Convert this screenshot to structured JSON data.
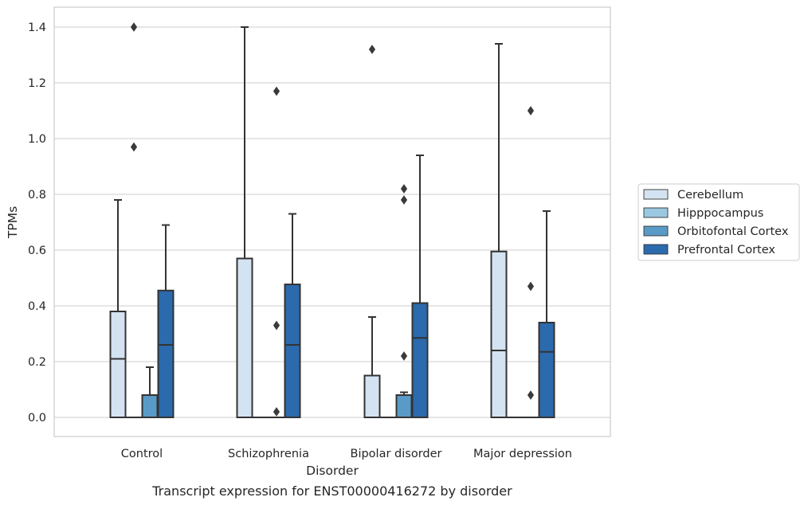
{
  "caption": "Transcript expression for ENST00000416272 by disorder",
  "chart_data": {
    "type": "boxplot",
    "xlabel": "Disorder",
    "ylabel": "TPMs",
    "ylim": [
      -0.07,
      1.47
    ],
    "yticks": [
      0.0,
      0.2,
      0.4,
      0.6,
      0.8,
      1.0,
      1.2,
      1.4
    ],
    "ytick_labels": [
      "0.0",
      "0.2",
      "0.4",
      "0.6",
      "0.8",
      "1.0",
      "1.2",
      "1.4"
    ],
    "grid": "horizontal",
    "legend_position": "right",
    "categories": [
      "Control",
      "Schizophrenia",
      "Bipolar disorder",
      "Major depression"
    ],
    "series": [
      {
        "name": "Cerebellum",
        "color": "#d4e3f1",
        "boxes": [
          {
            "q1": 0.0,
            "median": 0.21,
            "q3": 0.38,
            "whisker_low": 0.0,
            "whisker_high": 0.78,
            "outliers": []
          },
          {
            "q1": 0.0,
            "median": 0.0,
            "q3": 0.57,
            "whisker_low": 0.0,
            "whisker_high": 1.4,
            "outliers": []
          },
          {
            "q1": 0.0,
            "median": 0.0,
            "q3": 0.15,
            "whisker_low": 0.0,
            "whisker_high": 0.36,
            "outliers": [
              1.32
            ]
          },
          {
            "q1": 0.0,
            "median": 0.24,
            "q3": 0.595,
            "whisker_low": 0.0,
            "whisker_high": 1.34,
            "outliers": []
          }
        ]
      },
      {
        "name": "Hipppocampus",
        "color": "#9ac8e0",
        "boxes": [
          {
            "q1": 0.0,
            "median": 0.0,
            "q3": 0.0,
            "whisker_low": 0.0,
            "whisker_high": 0.0,
            "outliers": [
              0.97,
              1.4
            ]
          },
          {
            "q1": 0.0,
            "median": 0.0,
            "q3": 0.0,
            "whisker_low": 0.0,
            "whisker_high": 0.0,
            "outliers": []
          },
          {
            "q1": 0.0,
            "median": 0.0,
            "q3": 0.0,
            "whisker_low": 0.0,
            "whisker_high": 0.0,
            "outliers": []
          },
          {
            "q1": 0.0,
            "median": 0.0,
            "q3": 0.0,
            "whisker_low": 0.0,
            "whisker_high": 0.0,
            "outliers": []
          }
        ]
      },
      {
        "name": "Orbitofontal Cortex",
        "color": "#5a9ac7",
        "boxes": [
          {
            "q1": 0.0,
            "median": 0.0,
            "q3": 0.08,
            "whisker_low": 0.0,
            "whisker_high": 0.18,
            "outliers": []
          },
          {
            "q1": 0.0,
            "median": 0.0,
            "q3": 0.0,
            "whisker_low": 0.0,
            "whisker_high": 0.0,
            "outliers": [
              0.02,
              0.33,
              1.17
            ]
          },
          {
            "q1": 0.0,
            "median": 0.08,
            "q3": 0.08,
            "whisker_low": 0.0,
            "whisker_high": 0.09,
            "outliers": [
              0.22,
              0.78,
              0.82
            ]
          },
          {
            "q1": 0.0,
            "median": 0.0,
            "q3": 0.0,
            "whisker_low": 0.0,
            "whisker_high": 0.0,
            "outliers": [
              0.08,
              0.47,
              1.1
            ]
          }
        ]
      },
      {
        "name": "Prefrontal Cortex",
        "color": "#2b6aac",
        "boxes": [
          {
            "q1": 0.0,
            "median": 0.26,
            "q3": 0.455,
            "whisker_low": 0.0,
            "whisker_high": 0.69,
            "outliers": []
          },
          {
            "q1": 0.0,
            "median": 0.26,
            "q3": 0.477,
            "whisker_low": 0.0,
            "whisker_high": 0.73,
            "outliers": []
          },
          {
            "q1": 0.0,
            "median": 0.285,
            "q3": 0.41,
            "whisker_low": 0.0,
            "whisker_high": 0.94,
            "outliers": []
          },
          {
            "q1": 0.0,
            "median": 0.235,
            "q3": 0.34,
            "whisker_low": 0.0,
            "whisker_high": 0.74,
            "outliers": []
          }
        ]
      }
    ]
  }
}
